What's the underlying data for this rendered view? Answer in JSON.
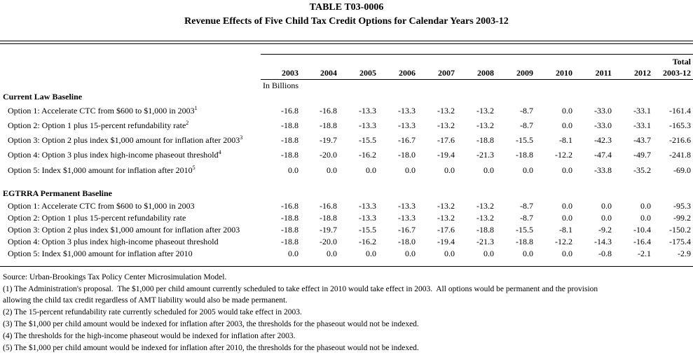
{
  "header": {
    "title": "TABLE T03-0006",
    "subtitle": "Revenue Effects of Five Child Tax Credit Options for Calendar Years 2003-12"
  },
  "table": {
    "total_label": "Total",
    "columns": [
      "2003",
      "2004",
      "2005",
      "2006",
      "2007",
      "2008",
      "2009",
      "2010",
      "2011",
      "2012",
      "2003-12"
    ],
    "unit": "In Billions",
    "sections": [
      {
        "title": "Current Law Baseline",
        "rows": [
          {
            "label": "Option 1: Accelerate CTC from $600 to $1,000 in 2003",
            "note": "1",
            "values": [
              "-16.8",
              "-16.8",
              "-13.3",
              "-13.3",
              "-13.2",
              "-13.2",
              "-8.7",
              "0.0",
              "-33.0",
              "-33.1",
              "-161.4"
            ]
          },
          {
            "label": "Option 2: Option 1 plus 15-percent refundability rate",
            "note": "2",
            "values": [
              "-18.8",
              "-18.8",
              "-13.3",
              "-13.3",
              "-13.2",
              "-13.2",
              "-8.7",
              "0.0",
              "-33.0",
              "-33.1",
              "-165.3"
            ]
          },
          {
            "label": "Option 3: Option 2 plus index $1,000 amount for inflation after 2003",
            "note": "3",
            "values": [
              "-18.8",
              "-19.7",
              "-15.5",
              "-16.7",
              "-17.6",
              "-18.8",
              "-15.5",
              "-8.1",
              "-42.3",
              "-43.7",
              "-216.6"
            ]
          },
          {
            "label": "Option 4: Option 3 plus index high-income phaseout threshold",
            "note": "4",
            "values": [
              "-18.8",
              "-20.0",
              "-16.2",
              "-18.0",
              "-19.4",
              "-21.3",
              "-18.8",
              "-12.2",
              "-47.4",
              "-49.7",
              "-241.8"
            ]
          },
          {
            "label": "Option 5: Index $1,000 amount for inflation after 2010",
            "note": "5",
            "values": [
              "0.0",
              "0.0",
              "0.0",
              "0.0",
              "0.0",
              "0.0",
              "0.0",
              "0.0",
              "-33.8",
              "-35.2",
              "-69.0"
            ]
          }
        ]
      },
      {
        "title": "EGTRRA Permanent Baseline",
        "rows": [
          {
            "label": "Option 1: Accelerate CTC from $600 to $1,000 in 2003",
            "values": [
              "-16.8",
              "-16.8",
              "-13.3",
              "-13.3",
              "-13.2",
              "-13.2",
              "-8.7",
              "0.0",
              "0.0",
              "0.0",
              "-95.3"
            ]
          },
          {
            "label": "Option 2: Option 1 plus 15-percent refundability rate",
            "values": [
              "-18.8",
              "-18.8",
              "-13.3",
              "-13.3",
              "-13.2",
              "-13.2",
              "-8.7",
              "0.0",
              "0.0",
              "0.0",
              "-99.2"
            ]
          },
          {
            "label": "Option 3: Option 2 plus index $1,000 amount for inflation after 2003",
            "values": [
              "-18.8",
              "-19.7",
              "-15.5",
              "-16.7",
              "-17.6",
              "-18.8",
              "-15.5",
              "-8.1",
              "-9.2",
              "-10.4",
              "-150.2"
            ]
          },
          {
            "label": "Option 4: Option 3 plus index high-income phaseout threshold",
            "values": [
              "-18.8",
              "-20.0",
              "-16.2",
              "-18.0",
              "-19.4",
              "-21.3",
              "-18.8",
              "-12.2",
              "-14.3",
              "-16.4",
              "-175.4"
            ]
          },
          {
            "label": "Option 5: Index $1,000 amount for inflation after 2010",
            "values": [
              "0.0",
              "0.0",
              "0.0",
              "0.0",
              "0.0",
              "0.0",
              "0.0",
              "0.0",
              "-0.8",
              "-2.1",
              "-2.9"
            ]
          }
        ]
      }
    ]
  },
  "notes": [
    "Source: Urban-Brookings Tax Policy Center Microsimulation Model.",
    "(1) The Administration's proposal.  The $1,000 per child amount currently scheduled to take effect in 2010 would take effect in 2003.  All options would be permanent and the provision",
    "allowing the child tax credit regardless of AMT liability would also be made permanent.",
    "(2) The 15-percent refundability rate currently scheduled for 2005 would take effect in 2003.",
    "(3) The $1,000 per child amount would be indexed for inflation after 2003, the thresholds for the phaseout would not be indexed.",
    "(4) The thresholds for the high-income phaseout would be indexed for inflation after 2003.",
    "(5) The $1,000 per child amount would be indexed for inflation after 2010, the thresholds for the phaseout would not be indexed."
  ]
}
